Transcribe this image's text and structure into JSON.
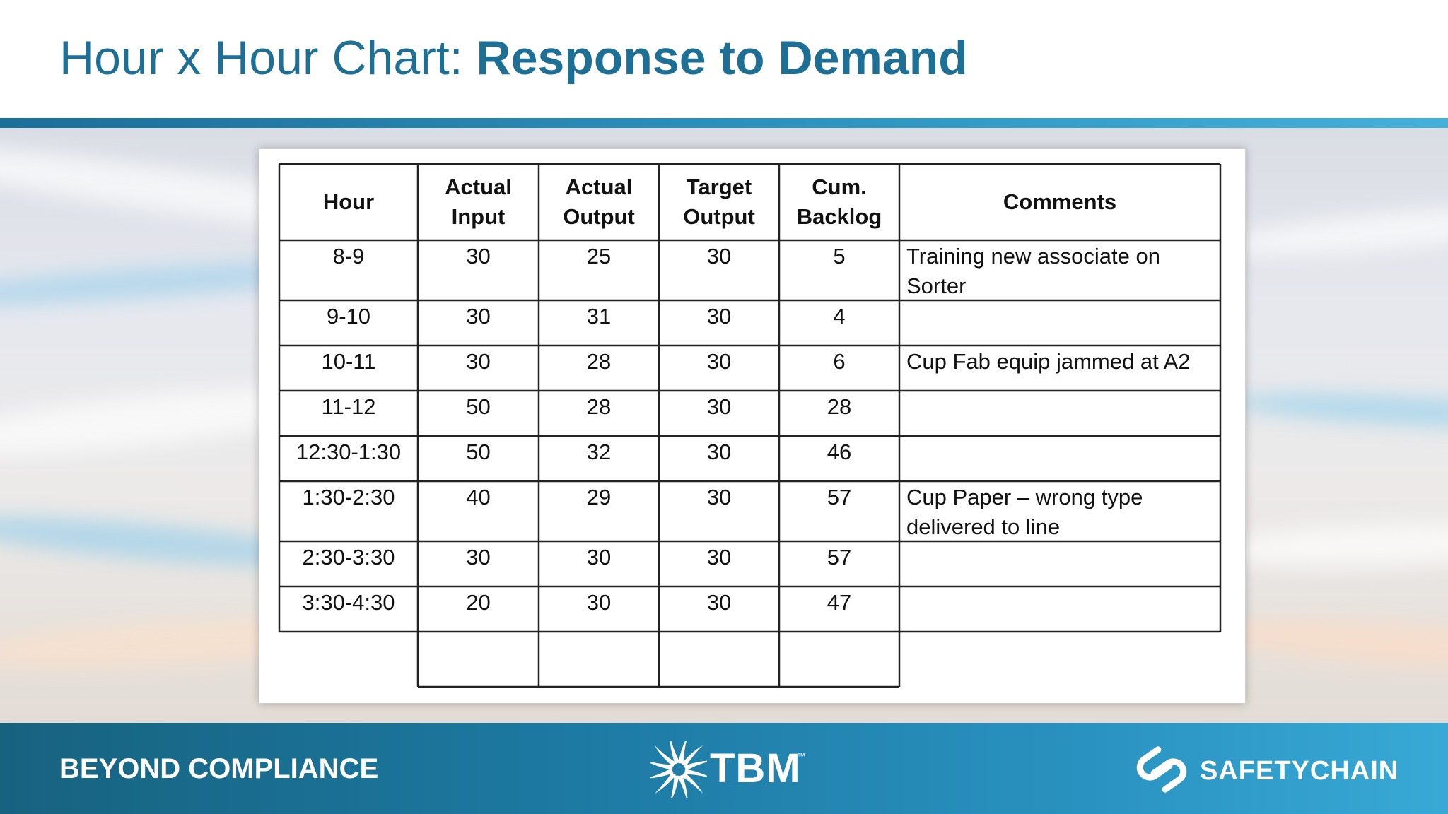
{
  "slide": {
    "title_regular": "Hour x Hour Chart: ",
    "title_bold": "Response to Demand"
  },
  "table": {
    "headers": [
      [
        "Hour"
      ],
      [
        "Actual",
        "Input"
      ],
      [
        "Actual",
        "Output"
      ],
      [
        "Target",
        "Output"
      ],
      [
        "Cum.",
        "Backlog"
      ],
      [
        "Comments"
      ]
    ],
    "rows": [
      {
        "hour": "8-9",
        "actual_input": "30",
        "actual_output": "25",
        "target_output": "30",
        "cum_backlog": "5",
        "comments": [
          "Training new associate on",
          "Sorter"
        ]
      },
      {
        "hour": "9-10",
        "actual_input": "30",
        "actual_output": "31",
        "target_output": "30",
        "cum_backlog": "4",
        "comments": []
      },
      {
        "hour": "10-11",
        "actual_input": "30",
        "actual_output": "28",
        "target_output": "30",
        "cum_backlog": "6",
        "comments": [
          "Cup Fab equip jammed at A2"
        ]
      },
      {
        "hour": "11-12",
        "actual_input": "50",
        "actual_output": "28",
        "target_output": "30",
        "cum_backlog": "28",
        "comments": []
      },
      {
        "hour": "12:30-1:30",
        "actual_input": "50",
        "actual_output": "32",
        "target_output": "30",
        "cum_backlog": "46",
        "comments": []
      },
      {
        "hour": "1:30-2:30",
        "actual_input": "40",
        "actual_output": "29",
        "target_output": "30",
        "cum_backlog": "57",
        "comments": [
          "Cup Paper – wrong type",
          "delivered to line"
        ]
      },
      {
        "hour": "2:30-3:30",
        "actual_input": "30",
        "actual_output": "30",
        "target_output": "30",
        "cum_backlog": "57",
        "comments": []
      },
      {
        "hour": "3:30-4:30",
        "actual_input": "20",
        "actual_output": "30",
        "target_output": "30",
        "cum_backlog": "47",
        "comments": []
      }
    ]
  },
  "footer": {
    "tagline": "BEYOND COMPLIANCE",
    "tbm_logo_text": "TBM",
    "tbm_trademark": "™",
    "safetychain_logo_text": "SAFETYCHAIN",
    "tbm_logo_icon": "tbm-starburst-icon",
    "safetychain_logo_icon": "safetychain-s-icon"
  },
  "colors": {
    "title": "#1e6f96",
    "header_rule": "#2d93be",
    "footer_start": "#17627f",
    "footer_end": "#38a9d6"
  }
}
